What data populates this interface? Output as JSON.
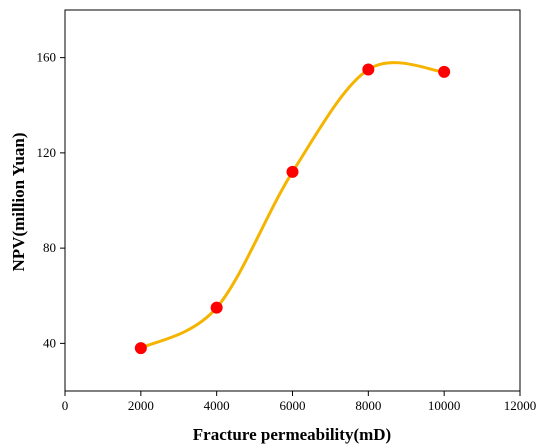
{
  "chart_data": {
    "type": "line",
    "title": "",
    "xlabel": "Fracture permeability(mD)",
    "ylabel": "NPV(million Yuan)",
    "xlim": [
      0,
      12000
    ],
    "ylim": [
      20,
      180
    ],
    "xticks": [
      0,
      2000,
      4000,
      6000,
      8000,
      10000,
      12000
    ],
    "yticks": [
      40,
      80,
      120,
      160
    ],
    "grid": false,
    "legend": "none",
    "line_style": "smooth",
    "colors": {
      "line": "#f5b400",
      "marker": "#ff0000",
      "axis": "#000000"
    },
    "series": [
      {
        "x": [
          2000,
          4000,
          6000,
          8000,
          10000
        ],
        "y": [
          38,
          55,
          112,
          155,
          154
        ]
      }
    ]
  }
}
